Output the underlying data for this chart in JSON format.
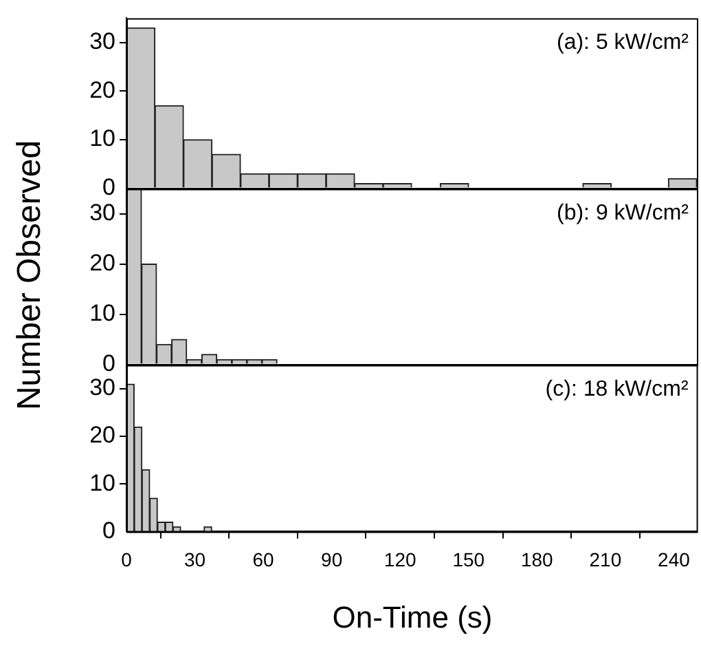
{
  "chart_data": [
    {
      "type": "histogram",
      "annotations": [
        "(a): 5 kW/cm²"
      ],
      "bins": [
        0,
        12.5,
        25,
        37.5,
        50,
        62.5,
        75,
        87.5,
        100,
        112.5,
        125,
        137.5,
        150,
        162.5,
        175,
        187.5,
        200,
        212.5,
        225,
        237.5,
        250
      ],
      "values": [
        33,
        17,
        10,
        7,
        3,
        3,
        3,
        3,
        1,
        1,
        0,
        1,
        0,
        0,
        0,
        0,
        1,
        0,
        0,
        2
      ],
      "color": "#c8c8c8",
      "xlim": [
        0,
        250
      ],
      "xticks": [
        0,
        30,
        60,
        90,
        120,
        150,
        180,
        210,
        240
      ],
      "ylim": [
        0,
        35
      ],
      "yticks": [
        0,
        10,
        20,
        30
      ],
      "tick_labels": "y",
      "grid": false,
      "legend": false
    },
    {
      "type": "histogram",
      "ylabel": "Number Observed",
      "annotations": [
        "(b): 9 kW/cm²"
      ],
      "bins": [
        0,
        6.6,
        13.2,
        19.8,
        26.4,
        33,
        39.6,
        46.2,
        52.8,
        59.4,
        66
      ],
      "values": [
        35,
        20,
        4,
        5,
        1,
        2,
        1,
        1,
        1,
        1
      ],
      "color": "#c8c8c8",
      "xlim": [
        0,
        250
      ],
      "xticks": [
        0,
        30,
        60,
        90,
        120,
        150,
        180,
        210,
        240
      ],
      "ylim": [
        0,
        35
      ],
      "yticks": [
        0,
        10,
        20,
        30
      ],
      "tick_labels": "y",
      "grid": false,
      "legend": false
    },
    {
      "type": "histogram",
      "xlabel": "On-Time (s)",
      "annotations": [
        "(c): 18 kW/cm²"
      ],
      "bins": [
        0,
        3.4,
        6.8,
        10.2,
        13.6,
        17,
        20.4,
        23.8,
        27.2,
        30.6,
        34,
        37.4
      ],
      "values": [
        31,
        22,
        13,
        7,
        2,
        2,
        1,
        0,
        0,
        0,
        1
      ],
      "color": "#c8c8c8",
      "xlim": [
        0,
        250
      ],
      "xticks": [
        0,
        30,
        60,
        90,
        120,
        150,
        180,
        210,
        240
      ],
      "ylim": [
        0,
        35
      ],
      "yticks": [
        0,
        10,
        20,
        30
      ],
      "grid": false,
      "legend": false
    }
  ]
}
